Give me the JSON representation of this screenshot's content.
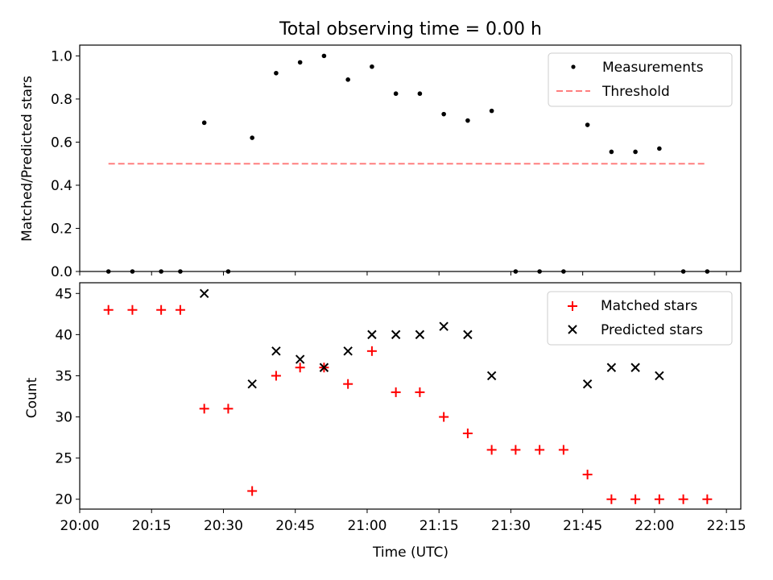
{
  "chart_data": [
    {
      "type": "scatter",
      "title": "Total observing time = 0.00 h",
      "xlabel": "",
      "ylabel": "Matched/Predicted stars",
      "xlim": [
        "20:00",
        "22:18"
      ],
      "ylim": [
        0.0,
        1.05
      ],
      "y_ticks": [
        "0.0",
        "0.2",
        "0.4",
        "0.6",
        "0.8",
        "1.0"
      ],
      "x_ticks_labelled": false,
      "legend": "top-right",
      "series": [
        {
          "name": "Measurements",
          "marker": "point",
          "color": "#000000",
          "points": [
            [
              "20:06",
              0.0
            ],
            [
              "20:11",
              0.0
            ],
            [
              "20:17",
              0.0
            ],
            [
              "20:21",
              0.0
            ],
            [
              "20:26",
              0.69
            ],
            [
              "20:31",
              0.0
            ],
            [
              "20:36",
              0.62
            ],
            [
              "20:41",
              0.92
            ],
            [
              "20:46",
              0.97
            ],
            [
              "20:51",
              1.0
            ],
            [
              "20:56",
              0.89
            ],
            [
              "21:01",
              0.95
            ],
            [
              "21:06",
              0.825
            ],
            [
              "21:11",
              0.825
            ],
            [
              "21:16",
              0.73
            ],
            [
              "21:21",
              0.7
            ],
            [
              "21:26",
              0.745
            ],
            [
              "21:31",
              0.0
            ],
            [
              "21:36",
              0.0
            ],
            [
              "21:41",
              0.0
            ],
            [
              "21:46",
              0.68
            ],
            [
              "21:51",
              0.555
            ],
            [
              "21:56",
              0.555
            ],
            [
              "22:01",
              0.57
            ],
            [
              "22:06",
              0.0
            ],
            [
              "22:11",
              0.0
            ]
          ]
        },
        {
          "name": "Threshold",
          "marker": "dashed-line",
          "color": "#ff7f7f",
          "points": [
            [
              "20:06",
              0.5
            ],
            [
              "22:11",
              0.5
            ]
          ]
        }
      ]
    },
    {
      "type": "scatter",
      "title": "",
      "xlabel": "Time (UTC)",
      "ylabel": "Count",
      "xlim": [
        "20:00",
        "22:18"
      ],
      "ylim": [
        18.8,
        46.3
      ],
      "x_ticks": [
        "20:00",
        "20:15",
        "20:30",
        "20:45",
        "21:00",
        "21:15",
        "21:30",
        "21:45",
        "22:00",
        "22:15"
      ],
      "y_ticks": [
        "20",
        "25",
        "30",
        "35",
        "40",
        "45"
      ],
      "legend": "top-right",
      "series": [
        {
          "name": "Matched stars",
          "marker": "plus",
          "color": "#ff0000",
          "points": [
            [
              "20:06",
              43
            ],
            [
              "20:11",
              43
            ],
            [
              "20:17",
              43
            ],
            [
              "20:21",
              43
            ],
            [
              "20:26",
              31
            ],
            [
              "20:31",
              31
            ],
            [
              "20:36",
              21
            ],
            [
              "20:41",
              35
            ],
            [
              "20:46",
              36
            ],
            [
              "20:51",
              36
            ],
            [
              "20:56",
              34
            ],
            [
              "21:01",
              38
            ],
            [
              "21:06",
              33
            ],
            [
              "21:11",
              33
            ],
            [
              "21:16",
              30
            ],
            [
              "21:21",
              28
            ],
            [
              "21:26",
              26
            ],
            [
              "21:31",
              26
            ],
            [
              "21:36",
              26
            ],
            [
              "21:41",
              26
            ],
            [
              "21:46",
              23
            ],
            [
              "21:51",
              20
            ],
            [
              "21:56",
              20
            ],
            [
              "22:01",
              20
            ],
            [
              "22:06",
              20
            ],
            [
              "22:11",
              20
            ]
          ]
        },
        {
          "name": "Predicted stars",
          "marker": "x",
          "color": "#000000",
          "points": [
            [
              "20:26",
              45
            ],
            [
              "20:36",
              34
            ],
            [
              "20:41",
              38
            ],
            [
              "20:46",
              37
            ],
            [
              "20:51",
              36
            ],
            [
              "20:56",
              38
            ],
            [
              "21:01",
              40
            ],
            [
              "21:06",
              40
            ],
            [
              "21:11",
              40
            ],
            [
              "21:16",
              41
            ],
            [
              "21:21",
              40
            ],
            [
              "21:26",
              35
            ],
            [
              "21:46",
              34
            ],
            [
              "21:51",
              36
            ],
            [
              "21:56",
              36
            ],
            [
              "22:01",
              35
            ]
          ]
        }
      ]
    }
  ]
}
